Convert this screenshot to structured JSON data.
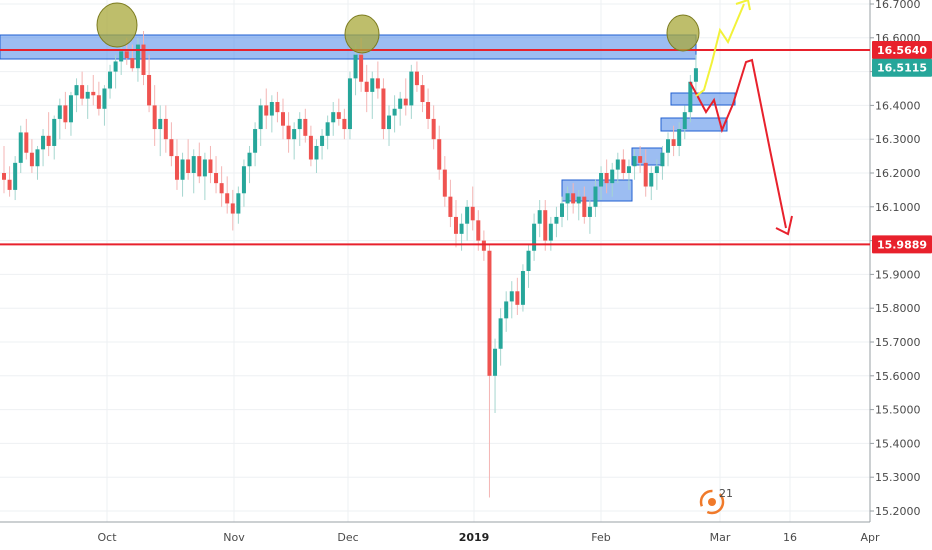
{
  "chart_data": {
    "type": "candlestick",
    "title": "",
    "xlabel": "",
    "ylabel": "",
    "ylim": [
      15.15,
      16.75
    ],
    "y_ticks": [
      "16.7000",
      "16.6000",
      "16.5000",
      "16.4000",
      "16.3000",
      "16.2000",
      "16.1000",
      "16.0000",
      "15.9000",
      "15.8000",
      "15.7000",
      "15.6000",
      "15.5000",
      "15.4000",
      "15.3000",
      "15.2000"
    ],
    "x_ticks": [
      "Oct",
      "Nov",
      "Dec",
      "2019",
      "Feb",
      "Mar",
      "16",
      "Apr"
    ],
    "grid": true,
    "price_levels": [
      {
        "label": "16.5640",
        "value": 16.564,
        "color": "#e8212c"
      },
      {
        "label": "16.5115",
        "value": 16.5115,
        "color": "#26a69a"
      },
      {
        "label": "15.9889",
        "value": 15.9889,
        "color": "#e8212c"
      }
    ],
    "colors": {
      "up": "#26a69a",
      "down": "#ef5350",
      "zone": "#4a86e8",
      "highlight": "#a8a83a",
      "projection_bear": "#e8212c",
      "projection_bull": "#f2f23a"
    },
    "watermark": "21",
    "candles": [
      [
        16.2,
        16.28,
        16.14,
        16.18
      ],
      [
        16.18,
        16.22,
        16.13,
        16.15
      ],
      [
        16.15,
        16.25,
        16.12,
        16.23
      ],
      [
        16.23,
        16.34,
        16.2,
        16.32
      ],
      [
        16.32,
        16.36,
        16.24,
        16.26
      ],
      [
        16.26,
        16.3,
        16.2,
        16.22
      ],
      [
        16.22,
        16.28,
        16.18,
        16.27
      ],
      [
        16.27,
        16.33,
        16.22,
        16.31
      ],
      [
        16.31,
        16.38,
        16.25,
        16.28
      ],
      [
        16.28,
        16.37,
        16.24,
        16.36
      ],
      [
        16.36,
        16.42,
        16.3,
        16.4
      ],
      [
        16.4,
        16.44,
        16.33,
        16.35
      ],
      [
        16.35,
        16.44,
        16.31,
        16.43
      ],
      [
        16.43,
        16.48,
        16.38,
        16.46
      ],
      [
        16.46,
        16.5,
        16.4,
        16.42
      ],
      [
        16.42,
        16.46,
        16.36,
        16.44
      ],
      [
        16.44,
        16.49,
        16.4,
        16.43
      ],
      [
        16.43,
        16.47,
        16.37,
        16.39
      ],
      [
        16.39,
        16.46,
        16.34,
        16.45
      ],
      [
        16.45,
        16.52,
        16.42,
        16.5
      ],
      [
        16.5,
        16.55,
        16.45,
        16.53
      ],
      [
        16.53,
        16.58,
        16.49,
        16.56
      ],
      [
        16.56,
        16.6,
        16.52,
        16.54
      ],
      [
        16.54,
        16.58,
        16.5,
        16.51
      ],
      [
        16.51,
        16.6,
        16.47,
        16.58
      ],
      [
        16.58,
        16.62,
        16.46,
        16.49
      ],
      [
        16.49,
        16.55,
        16.38,
        16.4
      ],
      [
        16.4,
        16.46,
        16.28,
        16.33
      ],
      [
        16.33,
        16.4,
        16.25,
        16.36
      ],
      [
        16.36,
        16.4,
        16.26,
        16.3
      ],
      [
        16.3,
        16.35,
        16.22,
        16.25
      ],
      [
        16.25,
        16.3,
        16.15,
        16.18
      ],
      [
        16.18,
        16.26,
        16.13,
        16.24
      ],
      [
        16.24,
        16.3,
        16.18,
        16.2
      ],
      [
        16.2,
        16.27,
        16.14,
        16.25
      ],
      [
        16.25,
        16.29,
        16.17,
        16.19
      ],
      [
        16.19,
        16.26,
        16.12,
        16.24
      ],
      [
        16.24,
        16.28,
        16.17,
        16.2
      ],
      [
        16.2,
        16.25,
        16.14,
        16.17
      ],
      [
        16.17,
        16.22,
        16.1,
        16.14
      ],
      [
        16.14,
        16.19,
        16.08,
        16.11
      ],
      [
        16.11,
        16.15,
        16.03,
        16.08
      ],
      [
        16.08,
        16.16,
        16.05,
        16.14
      ],
      [
        16.14,
        16.24,
        16.1,
        16.22
      ],
      [
        16.22,
        16.28,
        16.17,
        16.26
      ],
      [
        16.26,
        16.35,
        16.22,
        16.33
      ],
      [
        16.33,
        16.42,
        16.28,
        16.4
      ],
      [
        16.4,
        16.45,
        16.33,
        16.37
      ],
      [
        16.37,
        16.43,
        16.32,
        16.41
      ],
      [
        16.41,
        16.44,
        16.35,
        16.38
      ],
      [
        16.38,
        16.42,
        16.3,
        16.34
      ],
      [
        16.34,
        16.38,
        16.26,
        16.3
      ],
      [
        16.3,
        16.35,
        16.24,
        16.33
      ],
      [
        16.33,
        16.38,
        16.28,
        16.36
      ],
      [
        16.36,
        16.39,
        16.29,
        16.31
      ],
      [
        16.31,
        16.34,
        16.22,
        16.24
      ],
      [
        16.24,
        16.3,
        16.2,
        16.28
      ],
      [
        16.28,
        16.33,
        16.24,
        16.31
      ],
      [
        16.31,
        16.37,
        16.27,
        16.35
      ],
      [
        16.35,
        16.41,
        16.31,
        16.38
      ],
      [
        16.38,
        16.42,
        16.34,
        16.36
      ],
      [
        16.36,
        16.39,
        16.3,
        16.33
      ],
      [
        16.33,
        16.5,
        16.3,
        16.48
      ],
      [
        16.48,
        16.58,
        16.43,
        16.55
      ],
      [
        16.55,
        16.6,
        16.44,
        16.47
      ],
      [
        16.47,
        16.52,
        16.38,
        16.44
      ],
      [
        16.44,
        16.5,
        16.36,
        16.48
      ],
      [
        16.48,
        16.53,
        16.42,
        16.45
      ],
      [
        16.45,
        16.48,
        16.3,
        16.33
      ],
      [
        16.33,
        16.4,
        16.28,
        16.37
      ],
      [
        16.37,
        16.43,
        16.32,
        16.39
      ],
      [
        16.39,
        16.44,
        16.34,
        16.42
      ],
      [
        16.42,
        16.48,
        16.37,
        16.4
      ],
      [
        16.4,
        16.52,
        16.36,
        16.5
      ],
      [
        16.5,
        16.53,
        16.44,
        16.46
      ],
      [
        16.46,
        16.49,
        16.38,
        16.41
      ],
      [
        16.41,
        16.45,
        16.33,
        16.36
      ],
      [
        16.36,
        16.4,
        16.27,
        16.3
      ],
      [
        16.3,
        16.34,
        16.18,
        16.21
      ],
      [
        16.21,
        16.25,
        16.1,
        16.13
      ],
      [
        16.13,
        16.18,
        16.04,
        16.07
      ],
      [
        16.07,
        16.12,
        15.98,
        16.02
      ],
      [
        16.02,
        16.08,
        15.97,
        16.05
      ],
      [
        16.05,
        16.12,
        16.0,
        16.1
      ],
      [
        16.1,
        16.16,
        16.03,
        16.06
      ],
      [
        16.06,
        16.09,
        15.97,
        16.0
      ],
      [
        16.0,
        16.03,
        15.94,
        15.97
      ],
      [
        15.97,
        15.99,
        15.24,
        15.6
      ],
      [
        15.6,
        15.71,
        15.49,
        15.68
      ],
      [
        15.68,
        15.8,
        15.63,
        15.77
      ],
      [
        15.77,
        15.85,
        15.73,
        15.82
      ],
      [
        15.82,
        15.88,
        15.77,
        15.85
      ],
      [
        15.85,
        15.89,
        15.78,
        15.81
      ],
      [
        15.81,
        15.93,
        15.79,
        15.91
      ],
      [
        15.91,
        15.99,
        15.86,
        15.97
      ],
      [
        15.97,
        16.08,
        15.94,
        16.05
      ],
      [
        16.05,
        16.12,
        16.01,
        16.09
      ],
      [
        16.09,
        16.12,
        15.97,
        16.0
      ],
      [
        16.0,
        16.07,
        15.97,
        16.05
      ],
      [
        16.05,
        16.1,
        16.01,
        16.07
      ],
      [
        16.07,
        16.13,
        16.04,
        16.11
      ],
      [
        16.11,
        16.16,
        16.06,
        16.14
      ],
      [
        16.14,
        16.17,
        16.08,
        16.11
      ],
      [
        16.11,
        16.15,
        16.06,
        16.13
      ],
      [
        16.13,
        16.16,
        16.05,
        16.07
      ],
      [
        16.07,
        16.12,
        16.02,
        16.1
      ],
      [
        16.1,
        16.18,
        16.07,
        16.16
      ],
      [
        16.16,
        16.22,
        16.12,
        16.2
      ],
      [
        16.2,
        16.24,
        16.14,
        16.17
      ],
      [
        16.17,
        16.23,
        16.13,
        16.21
      ],
      [
        16.21,
        16.26,
        16.17,
        16.24
      ],
      [
        16.24,
        16.27,
        16.18,
        16.2
      ],
      [
        16.2,
        16.24,
        16.15,
        16.22
      ],
      [
        16.22,
        16.27,
        16.18,
        16.25
      ],
      [
        16.25,
        16.28,
        16.2,
        16.23
      ],
      [
        16.23,
        16.27,
        16.13,
        16.16
      ],
      [
        16.16,
        16.22,
        16.12,
        16.2
      ],
      [
        16.2,
        16.24,
        16.15,
        16.22
      ],
      [
        16.22,
        16.28,
        16.18,
        16.26
      ],
      [
        16.26,
        16.32,
        16.22,
        16.3
      ],
      [
        16.3,
        16.34,
        16.25,
        16.28
      ],
      [
        16.28,
        16.35,
        16.25,
        16.33
      ],
      [
        16.33,
        16.4,
        16.3,
        16.38
      ],
      [
        16.38,
        16.49,
        16.35,
        16.47
      ],
      [
        16.47,
        16.55,
        16.43,
        16.51
      ]
    ]
  }
}
